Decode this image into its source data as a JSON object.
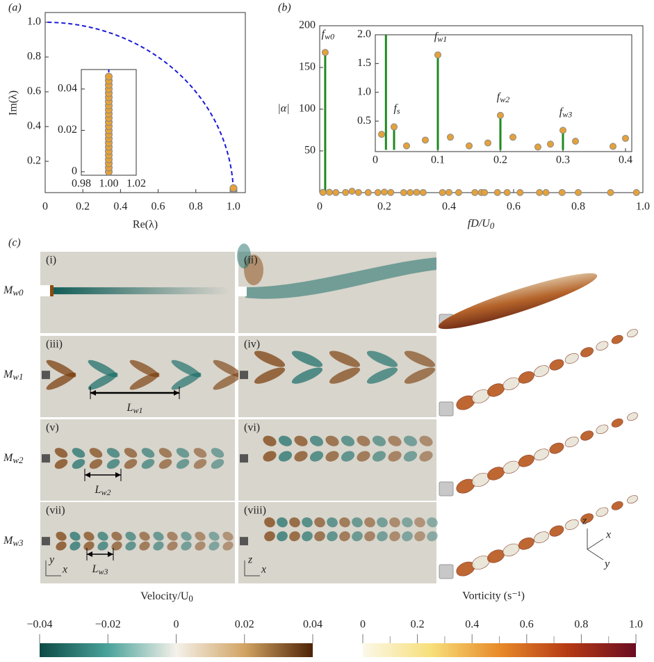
{
  "chart_data": [
    {
      "type": "scatter",
      "panel_label": "(a)",
      "x_label": "Re(λ)",
      "y_label": "Im(λ)",
      "xlim": [
        0,
        1.063
      ],
      "ylim": [
        0.02,
        1.056
      ],
      "xticks": [
        0,
        0.2,
        0.4,
        0.6,
        0.8,
        {
          "value": 1,
          "label": "1.0"
        }
      ],
      "yticks": [
        0.2,
        0.4,
        0.6,
        0.8,
        {
          "value": 1,
          "label": "1.0"
        }
      ],
      "reference_circle_radius": 1,
      "reference_color": "#1a1ad8",
      "point_color": "#e5a23a",
      "x": [
        1,
        1,
        1,
        1,
        1,
        1,
        1,
        1,
        1,
        1,
        1,
        1,
        1,
        1,
        1,
        1,
        1,
        1,
        1,
        1,
        1,
        1,
        1,
        1
      ],
      "values": [
        0,
        0.002,
        0.004,
        0.006,
        0.008,
        0.01,
        0.012,
        0.014,
        0.016,
        0.018,
        0.02,
        0.022,
        0.024,
        0.026,
        0.028,
        0.03,
        0.032,
        0.034,
        0.036,
        0.038,
        0.04,
        0.042,
        0.044,
        0.046
      ],
      "inset": {
        "xlim": [
          0.98,
          1.02
        ],
        "ylim": [
          -0.0017,
          0.0494
        ],
        "xticks": [
          {
            "value": 0.98,
            "label": "0.98"
          },
          {
            "value": 1,
            "label": "1.00"
          },
          {
            "value": 1.02,
            "label": "1.02"
          }
        ],
        "yticks": [
          0,
          0.02,
          0.04
        ]
      }
    },
    {
      "type": "stem",
      "panel_label": "(b)",
      "x_label": {
        "text": "fD/U",
        "sub": "0"
      },
      "y_label": "|α|",
      "xlim": [
        0,
        1
      ],
      "ylim": [
        0,
        200
      ],
      "xticks": [
        0,
        0.2,
        0.4,
        0.6,
        0.8,
        {
          "value": 1,
          "label": "1.0"
        }
      ],
      "yticks": [
        50,
        100,
        150,
        200
      ],
      "stem_color": "#1f8a1f",
      "point_color": "#e5a23a",
      "x": [
        0.01,
        0.017,
        0.03,
        0.05,
        0.08,
        0.1,
        0.12,
        0.15,
        0.18,
        0.2,
        0.22,
        0.26,
        0.28,
        0.3,
        0.32,
        0.38,
        0.4,
        0.43,
        0.48,
        0.5,
        0.51,
        0.55,
        0.58,
        0.62,
        0.68,
        0.7,
        0.75,
        0.8,
        0.9,
        0.98
      ],
      "values": [
        0.27,
        168,
        0.4,
        0.07,
        0.17,
        1.65,
        0.22,
        0.07,
        0.12,
        0.6,
        0.22,
        0.05,
        0.1,
        0.34,
        0.15,
        0.06,
        0.2,
        0.1,
        0.1,
        0.1,
        0.1,
        0.1,
        0.1,
        0.1,
        0.1,
        0.1,
        0.1,
        0.1,
        0.1,
        0.1
      ],
      "annotations": [
        {
          "text": "f",
          "sub": "w0",
          "index": 1,
          "panel": "main"
        },
        {
          "text": "f",
          "sub": "s",
          "index": 2,
          "panel": "inset"
        },
        {
          "text": "f",
          "sub": "w1",
          "index": 5,
          "panel": "inset"
        },
        {
          "text": "f",
          "sub": "w2",
          "index": 9,
          "panel": "inset"
        },
        {
          "text": "f",
          "sub": "w3",
          "index": 13,
          "panel": "inset"
        }
      ],
      "inset": {
        "xlim": [
          0,
          0.41
        ],
        "ylim": [
          -0.03,
          2.0
        ],
        "xticks": [
          0,
          0.1,
          0.2,
          0.3,
          0.4
        ],
        "yticks": [
          {
            "value": 0.5,
            "label": "0.5"
          },
          {
            "value": 1,
            "label": "1.0"
          },
          {
            "value": 1.5,
            "label": "1.5"
          },
          {
            "value": 2,
            "label": "2.0"
          }
        ]
      }
    }
  ],
  "panel_c": {
    "label": "(c)",
    "rows": [
      {
        "mode": {
          "text": "M",
          "sub": "w0"
        },
        "images": [
          "(i)",
          "(ii)"
        ]
      },
      {
        "mode": {
          "text": "M",
          "sub": "w1"
        },
        "images": [
          "(iii)",
          "(iv)"
        ],
        "length": {
          "text": "L",
          "sub": "w1"
        }
      },
      {
        "mode": {
          "text": "M",
          "sub": "w2"
        },
        "images": [
          "(v)",
          "(vi)"
        ],
        "length": {
          "text": "L",
          "sub": "w2"
        }
      },
      {
        "mode": {
          "text": "M",
          "sub": "w3"
        },
        "images": [
          "(vii)",
          "(viii)"
        ],
        "length": {
          "text": "L",
          "sub": "w3"
        }
      }
    ],
    "axes_xy": [
      "y",
      "x"
    ],
    "axes_zx": [
      "z",
      "x"
    ],
    "axes_3d": [
      "z",
      "x",
      "y"
    ]
  },
  "colorbars": [
    {
      "title": {
        "text": "Velocity/U",
        "sub": "0"
      },
      "lim": [
        -0.04,
        0.04
      ],
      "ticks": [
        {
          "value": -0.04,
          "label": "−0.04"
        },
        {
          "value": -0.02,
          "label": "−0.02"
        },
        0,
        0.02,
        0.04
      ],
      "colors": [
        "#0d4a45",
        "#4aa39b",
        "#f4f1ea",
        "#d2a464",
        "#4d2305"
      ]
    },
    {
      "title": "Vorticity (s⁻¹)",
      "lim": [
        0,
        1
      ],
      "ticks": [
        0,
        0.2,
        0.4,
        0.6,
        0.8,
        {
          "value": 1,
          "label": "1.0"
        }
      ],
      "minor_ticks": [
        0.1,
        0.3,
        0.5,
        0.7,
        0.9
      ],
      "colors": [
        "#fbf8e8",
        "#f7df7a",
        "#e88a2a",
        "#b53a14",
        "#6a0d22"
      ]
    }
  ]
}
